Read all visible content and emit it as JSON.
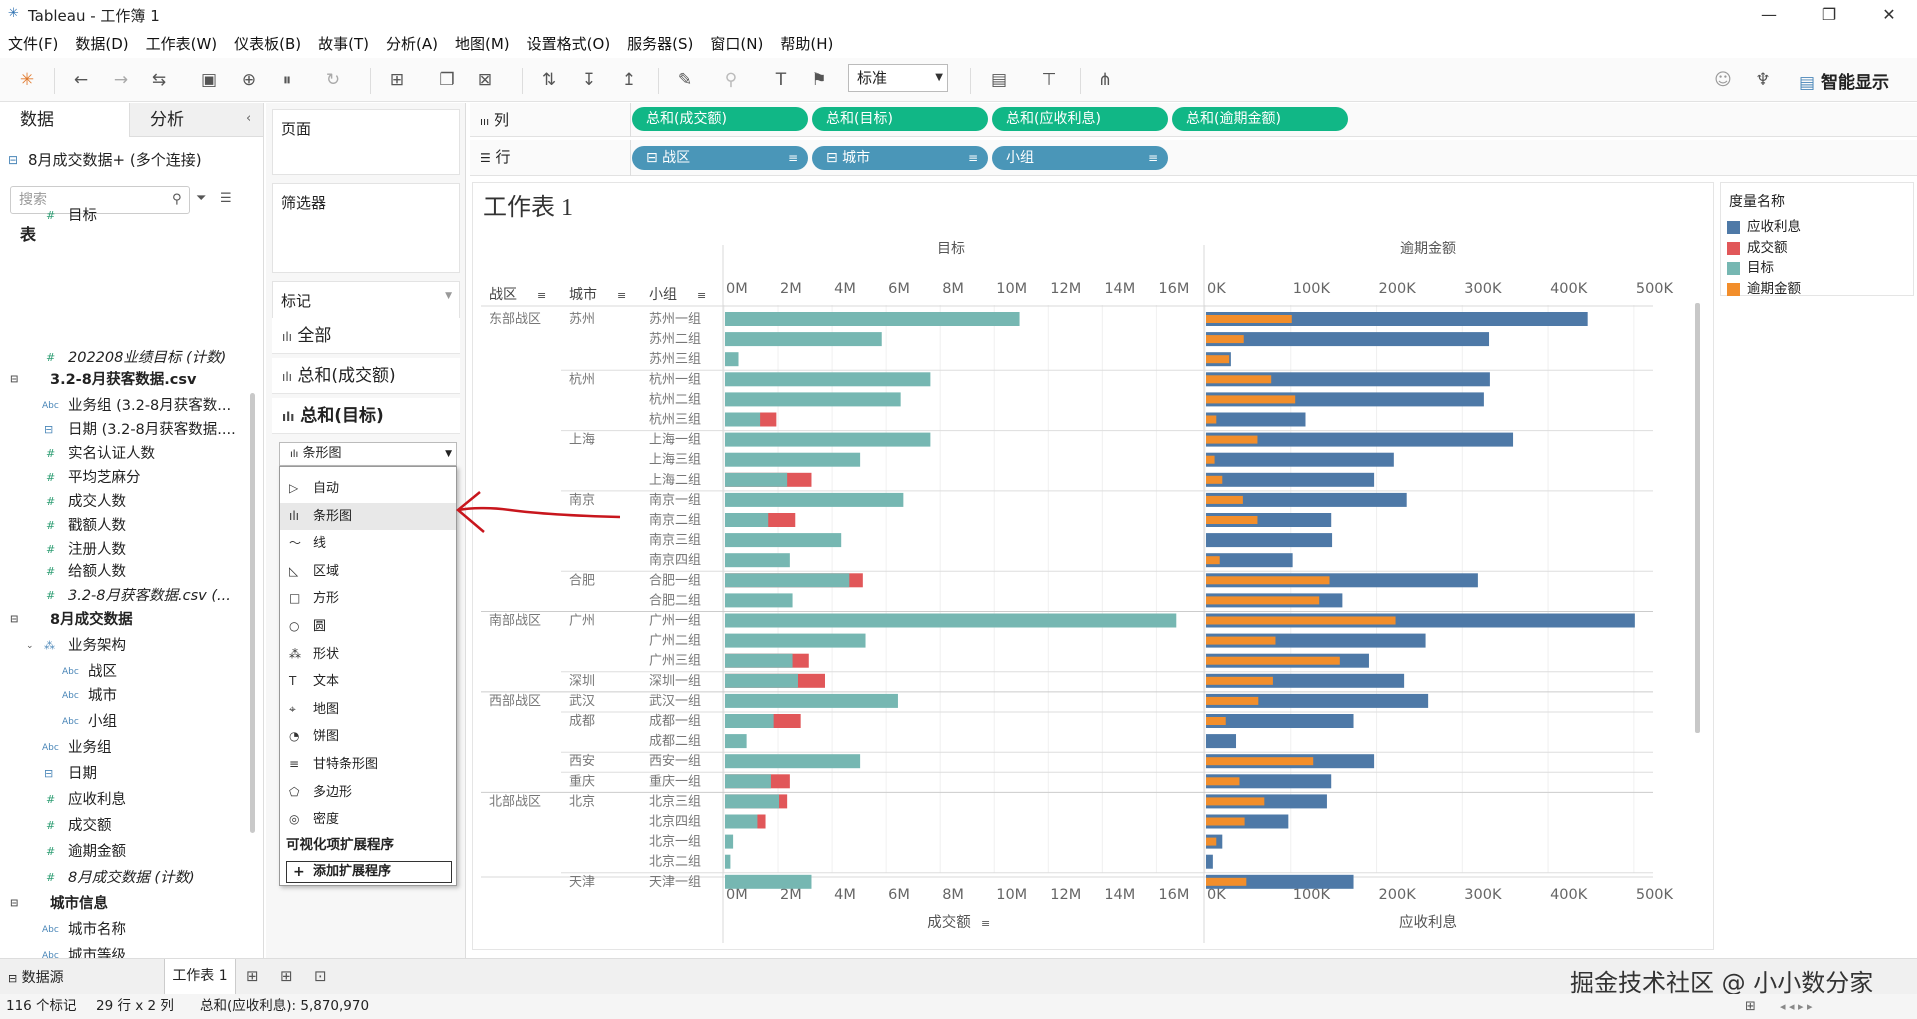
{
  "window": {
    "title": "Tableau - 工作簿 1",
    "min": "—",
    "max": "❐",
    "close": "✕"
  },
  "menu": [
    "文件(F)",
    "数据(D)",
    "工作表(W)",
    "仪表板(B)",
    "故事(T)",
    "分析(A)",
    "地图(M)",
    "设置格式(O)",
    "服务器(S)",
    "窗口(N)",
    "帮助(H)"
  ],
  "toolbar": {
    "standard": "标准",
    "smart": "智能显示"
  },
  "left": {
    "tab_data": "数据",
    "tab_analysis": "分析",
    "source": "8月成交数据+ (多个连接)",
    "search": "搜索",
    "table_header": "表",
    "fields": [
      {
        "label": "目标",
        "kind": "measure",
        "indent": 1,
        "italic": false
      },
      {
        "label": "202208业绩目标 (计数)",
        "kind": "measure",
        "indent": 1,
        "italic": true
      },
      {
        "label": "3.2-8月获客数据.csv",
        "kind": "group",
        "indent": 0,
        "italic": false
      },
      {
        "label": "业务组 (3.2-8月获客数...",
        "kind": "abc",
        "indent": 1,
        "italic": false
      },
      {
        "label": "日期 (3.2-8月获客数据....",
        "kind": "date",
        "indent": 1,
        "italic": false
      },
      {
        "label": "实名认证人数",
        "kind": "measure",
        "indent": 1,
        "italic": false
      },
      {
        "label": "平均芝麻分",
        "kind": "measure",
        "indent": 1,
        "italic": false
      },
      {
        "label": "成交人数",
        "kind": "measure",
        "indent": 1,
        "italic": false
      },
      {
        "label": "戳额人数",
        "kind": "measure",
        "indent": 1,
        "italic": false
      },
      {
        "label": "注册人数",
        "kind": "measure",
        "indent": 1,
        "italic": false
      },
      {
        "label": "给额人数",
        "kind": "measure",
        "indent": 1,
        "italic": false
      },
      {
        "label": "3.2-8月获客数据.csv (...",
        "kind": "measure",
        "indent": 1,
        "italic": true
      },
      {
        "label": "8月成交数据",
        "kind": "group",
        "indent": 0,
        "italic": false
      },
      {
        "label": "业务架构",
        "kind": "hier",
        "indent": 1,
        "italic": false
      },
      {
        "label": "战区",
        "kind": "abc",
        "indent": 2,
        "italic": false
      },
      {
        "label": "城市",
        "kind": "abc",
        "indent": 2,
        "italic": false
      },
      {
        "label": "小组",
        "kind": "abc",
        "indent": 2,
        "italic": false
      },
      {
        "label": "业务组",
        "kind": "abc",
        "indent": 1,
        "italic": false
      },
      {
        "label": "日期",
        "kind": "date",
        "indent": 1,
        "italic": false
      },
      {
        "label": "应收利息",
        "kind": "measure",
        "indent": 1,
        "italic": false
      },
      {
        "label": "成交额",
        "kind": "measure",
        "indent": 1,
        "italic": false
      },
      {
        "label": "逾期金额",
        "kind": "measure",
        "indent": 1,
        "italic": false
      },
      {
        "label": "8月成交数据 (计数)",
        "kind": "measure",
        "indent": 1,
        "italic": true
      },
      {
        "label": "城市信息",
        "kind": "group",
        "indent": 0,
        "italic": false
      },
      {
        "label": "城市名称",
        "kind": "abc",
        "indent": 1,
        "italic": false
      },
      {
        "label": "城市等级",
        "kind": "abc",
        "indent": 1,
        "italic": false
      }
    ]
  },
  "cards": {
    "pages": "页面",
    "filters": "筛选器",
    "marks": "标记",
    "mark_all": "全部",
    "mark_deal": "总和(成交额)",
    "mark_target": "总和(目标)",
    "mark_type": "条形图"
  },
  "dropdown": {
    "items": [
      {
        "label": "自动",
        "icon": "▷"
      },
      {
        "label": "条形图",
        "icon": "ılı"
      },
      {
        "label": "线",
        "icon": "〜"
      },
      {
        "label": "区域",
        "icon": "◺"
      },
      {
        "label": "方形",
        "icon": "□"
      },
      {
        "label": "圆",
        "icon": "○"
      },
      {
        "label": "形状",
        "icon": "⁂"
      },
      {
        "label": "文本",
        "icon": "T"
      },
      {
        "label": "地图",
        "icon": "⌖"
      },
      {
        "label": "饼图",
        "icon": "◔"
      },
      {
        "label": "甘特条形图",
        "icon": "≡"
      },
      {
        "label": "多边形",
        "icon": "⬠"
      },
      {
        "label": "密度",
        "icon": "◎"
      }
    ],
    "ext_header": "可视化项扩展程序",
    "ext_button": "添加扩展程序"
  },
  "shelves": {
    "columns_label": "列",
    "rows_label": "行",
    "columns": [
      "总和(成交额)",
      "总和(目标)",
      "总和(应收利息)",
      "总和(逾期金额)"
    ],
    "rows": [
      "战区",
      "城市",
      "小组"
    ]
  },
  "legend": {
    "title": "度量名称",
    "items": [
      {
        "label": "应收利息",
        "color": "#4e79a7"
      },
      {
        "label": "成交额",
        "color": "#e15759"
      },
      {
        "label": "目标",
        "color": "#76b7b2"
      },
      {
        "label": "逾期金额",
        "color": "#f28e2b"
      }
    ]
  },
  "bottom": {
    "datasource": "数据源",
    "sheet": "工作表 1",
    "status_marks": "116 个标记",
    "status_rc": "29 行 x 2 列",
    "status_sum": "总和(应收利息): 5,870,970",
    "watermark": "掘金技术社区 @ 小小数分家"
  },
  "chart_data": {
    "type": "bar",
    "title": "工作表 1",
    "row_headers": [
      "战区",
      "城市",
      "小组"
    ],
    "left_panel": {
      "header": "目标",
      "xlabel": "成交额",
      "ticks": [
        "0M",
        "2M",
        "4M",
        "6M",
        "8M",
        "10M",
        "12M",
        "14M",
        "16M"
      ],
      "xlim": [
        0,
        16800000
      ]
    },
    "right_panel": {
      "header": "逾期金额",
      "xlabel": "应收利息",
      "ticks": [
        "0K",
        "100K",
        "200K",
        "300K",
        "400K",
        "500K"
      ],
      "xlim": [
        0,
        520000
      ]
    },
    "rows": [
      {
        "region": "东部战区",
        "city": "苏州",
        "group": "苏州一组",
        "target": 10900000,
        "deal": 0,
        "interest": 445000,
        "overdue": 100000
      },
      {
        "region": "",
        "city": "",
        "group": "苏州二组",
        "target": 5800000,
        "deal": 0,
        "interest": 330000,
        "overdue": 44000
      },
      {
        "region": "",
        "city": "",
        "group": "苏州三组",
        "target": 500000,
        "deal": 0,
        "interest": 29000,
        "overdue": 27000
      },
      {
        "region": "",
        "city": "杭州",
        "group": "杭州一组",
        "target": 7600000,
        "deal": 0,
        "interest": 331000,
        "overdue": 76000
      },
      {
        "region": "",
        "city": "",
        "group": "杭州二组",
        "target": 6500000,
        "deal": 0,
        "interest": 324000,
        "overdue": 104000
      },
      {
        "region": "",
        "city": "",
        "group": "杭州三组",
        "target": 1300000,
        "deal": 1900000,
        "interest": 116000,
        "overdue": 12000
      },
      {
        "region": "",
        "city": "上海",
        "group": "上海一组",
        "target": 7600000,
        "deal": 0,
        "interest": 358000,
        "overdue": 60000
      },
      {
        "region": "",
        "city": "",
        "group": "上海三组",
        "target": 5000000,
        "deal": 0,
        "interest": 219000,
        "overdue": 10000
      },
      {
        "region": "",
        "city": "",
        "group": "上海二组",
        "target": 2300000,
        "deal": 3200000,
        "interest": 196000,
        "overdue": 19000
      },
      {
        "region": "",
        "city": "南京",
        "group": "南京一组",
        "target": 6600000,
        "deal": 0,
        "interest": 234000,
        "overdue": 43000
      },
      {
        "region": "",
        "city": "",
        "group": "南京二组",
        "target": 1600000,
        "deal": 2600000,
        "interest": 146000,
        "overdue": 60000
      },
      {
        "region": "",
        "city": "",
        "group": "南京三组",
        "target": 4300000,
        "deal": 0,
        "interest": 147000,
        "overdue": 0
      },
      {
        "region": "",
        "city": "",
        "group": "南京四组",
        "target": 2400000,
        "deal": 0,
        "interest": 101000,
        "overdue": 16000
      },
      {
        "region": "",
        "city": "合肥",
        "group": "合肥一组",
        "target": 4600000,
        "deal": 5100000,
        "interest": 317000,
        "overdue": 144000
      },
      {
        "region": "",
        "city": "",
        "group": "合肥二组",
        "target": 2500000,
        "deal": 0,
        "interest": 159000,
        "overdue": 132000
      },
      {
        "region": "南部战区",
        "city": "广州",
        "group": "广州一组",
        "target": 16700000,
        "deal": 0,
        "interest": 500000,
        "overdue": 221000
      },
      {
        "region": "",
        "city": "",
        "group": "广州二组",
        "target": 5200000,
        "deal": 0,
        "interest": 256000,
        "overdue": 81000
      },
      {
        "region": "",
        "city": "",
        "group": "广州三组",
        "target": 2500000,
        "deal": 3100000,
        "interest": 190000,
        "overdue": 156000
      },
      {
        "region": "",
        "city": "深圳",
        "group": "深圳一组",
        "target": 2700000,
        "deal": 3700000,
        "interest": 231000,
        "overdue": 78000
      },
      {
        "region": "西部战区",
        "city": "武汉",
        "group": "武汉一组",
        "target": 6400000,
        "deal": 0,
        "interest": 259000,
        "overdue": 61000
      },
      {
        "region": "",
        "city": "成都",
        "group": "成都一组",
        "target": 1800000,
        "deal": 2800000,
        "interest": 172000,
        "overdue": 23000
      },
      {
        "region": "",
        "city": "",
        "group": "成都二组",
        "target": 800000,
        "deal": 0,
        "interest": 35000,
        "overdue": 0
      },
      {
        "region": "",
        "city": "西安",
        "group": "西安一组",
        "target": 5000000,
        "deal": 0,
        "interest": 196000,
        "overdue": 125000
      },
      {
        "region": "",
        "city": "重庆",
        "group": "重庆一组",
        "target": 1700000,
        "deal": 2400000,
        "interest": 146000,
        "overdue": 39000
      },
      {
        "region": "北部战区",
        "city": "北京",
        "group": "北京三组",
        "target": 2000000,
        "deal": 2300000,
        "interest": 141000,
        "overdue": 68000
      },
      {
        "region": "",
        "city": "",
        "group": "北京四组",
        "target": 1200000,
        "deal": 1500000,
        "interest": 96000,
        "overdue": 45000
      },
      {
        "region": "",
        "city": "",
        "group": "北京一组",
        "target": 300000,
        "deal": 0,
        "interest": 19000,
        "overdue": 12000
      },
      {
        "region": "",
        "city": "",
        "group": "北京二组",
        "target": 200000,
        "deal": 0,
        "interest": 8000,
        "overdue": 0
      },
      {
        "region": "",
        "city": "天津",
        "group": "天津一组",
        "target": 3200000,
        "deal": 0,
        "interest": 172000,
        "overdue": 47000
      }
    ]
  }
}
